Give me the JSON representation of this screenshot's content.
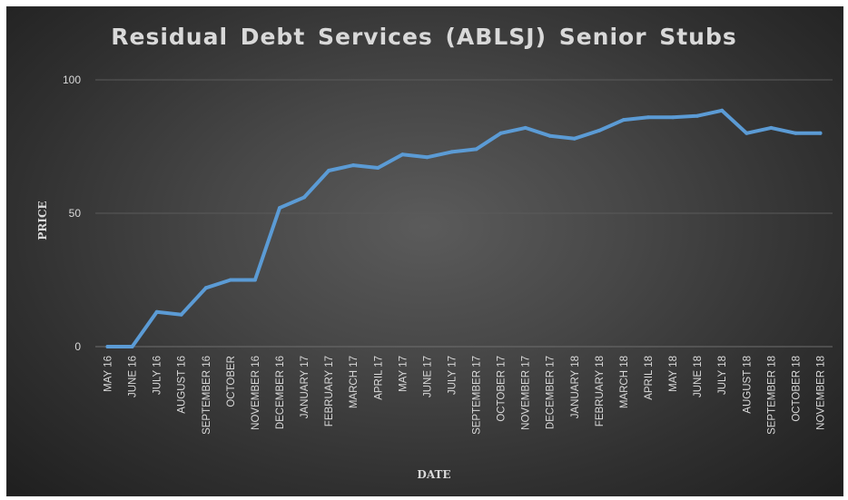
{
  "chart_data": {
    "type": "line",
    "title": "Residual  Debt  Services  (ABLSJ)  Senior  Stubs",
    "xlabel": "DATE",
    "ylabel": "PRICE",
    "ylim": [
      0,
      100
    ],
    "yticks": [
      "0",
      "50",
      "100"
    ],
    "grid": true,
    "categories": [
      "MAY 16",
      "JUNE 16",
      "JULY 16",
      "AUGUST 16",
      "SEPTEMBER 16",
      "OCTOBER",
      "NOVEMBER 16",
      "DECEMBER 16",
      "JANUARY 17",
      "FEBRUARY 17",
      "MARCH 17",
      "APRIL 17",
      "MAY 17",
      "JUNE 17",
      "JULY 17",
      "SEPTEMBER 17",
      "OCTOBER 17",
      "NOVEMBER 17",
      "DECEMBER 17",
      "JANUARY 18",
      "FEBRUARY 18",
      "MARCH 18",
      "APRIL 18",
      "MAY 18",
      "JUNE 18",
      "JULY 18",
      "AUGUST 18",
      "SEPTEMBER 18",
      "OCTOBER 18",
      "NOVEMBER 18"
    ],
    "series": [
      {
        "values": [
          0,
          0,
          13,
          12,
          22,
          25,
          25,
          52,
          56,
          66,
          68,
          67,
          72,
          71,
          73,
          74,
          80,
          82,
          79,
          78,
          81,
          85,
          86,
          86,
          86.5,
          88.5,
          80,
          82,
          80,
          80
        ]
      }
    ],
    "line_color": "#5b9bd5"
  }
}
